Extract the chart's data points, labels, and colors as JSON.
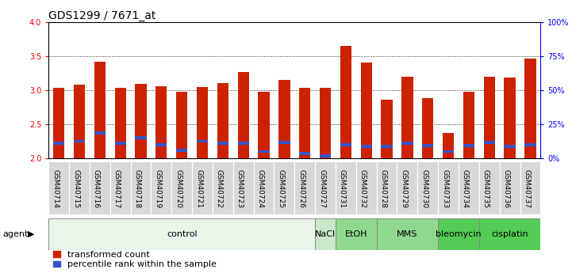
{
  "title": "GDS1299 / 7671_at",
  "samples": [
    "GSM40714",
    "GSM40715",
    "GSM40716",
    "GSM40717",
    "GSM40718",
    "GSM40719",
    "GSM40720",
    "GSM40721",
    "GSM40722",
    "GSM40723",
    "GSM40724",
    "GSM40725",
    "GSM40726",
    "GSM40727",
    "GSM40731",
    "GSM40732",
    "GSM40728",
    "GSM40729",
    "GSM40730",
    "GSM40733",
    "GSM40734",
    "GSM40735",
    "GSM40736",
    "GSM40737"
  ],
  "red_values": [
    3.03,
    3.08,
    3.42,
    3.03,
    3.09,
    3.06,
    2.97,
    3.05,
    3.1,
    3.26,
    2.97,
    3.15,
    3.03,
    3.03,
    3.65,
    3.4,
    2.86,
    3.2,
    2.88,
    2.37,
    2.98,
    3.2,
    3.18,
    3.46
  ],
  "blue_values": [
    0.22,
    0.25,
    0.37,
    0.22,
    0.3,
    0.2,
    0.12,
    0.25,
    0.22,
    0.22,
    0.1,
    0.23,
    0.07,
    0.04,
    0.2,
    0.18,
    0.17,
    0.22,
    0.19,
    0.1,
    0.19,
    0.23,
    0.18,
    0.2
  ],
  "ymin": 2.0,
  "ymax": 4.0,
  "yticks": [
    2.0,
    2.5,
    3.0,
    3.5,
    4.0
  ],
  "y2ticks": [
    0,
    25,
    50,
    75,
    100
  ],
  "y2labels": [
    "0%",
    "25%",
    "50%",
    "75%",
    "100%"
  ],
  "agent_groups": [
    {
      "label": "control",
      "start": 0,
      "end": 13,
      "color": "#e8f5e8"
    },
    {
      "label": "NaCl",
      "start": 13,
      "end": 14,
      "color": "#c8e8c8"
    },
    {
      "label": "EtOH",
      "start": 14,
      "end": 16,
      "color": "#90d890"
    },
    {
      "label": "MMS",
      "start": 16,
      "end": 19,
      "color": "#90d890"
    },
    {
      "label": "bleomycin",
      "start": 19,
      "end": 21,
      "color": "#55cc55"
    },
    {
      "label": "cisplatin",
      "start": 21,
      "end": 24,
      "color": "#55cc55"
    }
  ],
  "bar_color": "#cc2200",
  "blue_color": "#3355cc",
  "title_fontsize": 10,
  "tick_fontsize": 7,
  "agent_label_fontsize": 8,
  "legend_fontsize": 8,
  "bar_width": 0.55
}
